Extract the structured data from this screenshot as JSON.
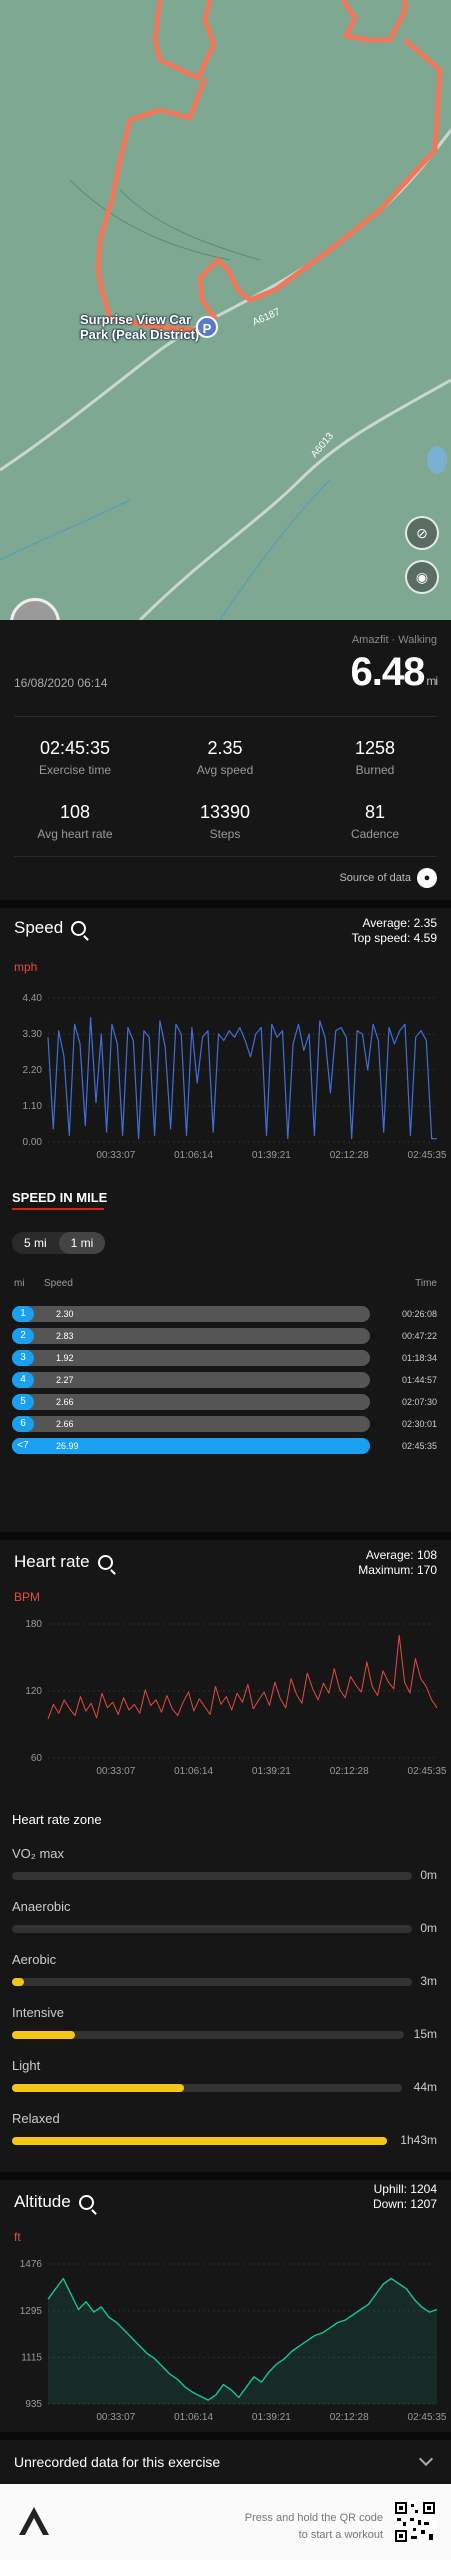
{
  "map": {
    "place_label": "Surprise View Car Park (Peak District)",
    "road_label_1": "A6187",
    "road_label_2": "A6013",
    "hide_map_icon": "map-off-icon",
    "visibility_icon": "eye-icon",
    "colors": {
      "route": "#f0785a",
      "land": "#7fa892"
    }
  },
  "summary": {
    "device": "Amazfit · Walking",
    "distance": "6.48",
    "distance_unit": "mi",
    "date": "16/08/2020 06:14",
    "stats": [
      {
        "value": "02:45:35",
        "label": "Exercise time"
      },
      {
        "value": "2.35",
        "label": "Avg speed"
      },
      {
        "value": "1258",
        "label": "Burned"
      },
      {
        "value": "108",
        "label": "Avg heart rate"
      },
      {
        "value": "13390",
        "label": "Steps"
      },
      {
        "value": "81",
        "label": "Cadence"
      }
    ],
    "source_label": "Source of data"
  },
  "speed": {
    "title": "Speed",
    "average": "Average: 2.35",
    "top": "Top speed: 4.59",
    "unit": "mph"
  },
  "speed_in_mile": {
    "title": "SPEED IN MILE",
    "seg_5": "5 mi",
    "seg_1": "1 mi",
    "col_mi": "mi",
    "col_speed": "Speed",
    "col_time": "Time",
    "rows": [
      {
        "mi": "1",
        "speed": "2.30",
        "time": "00:26:08",
        "frac": 0.44
      },
      {
        "mi": "2",
        "speed": "2.83",
        "time": "00:47:22",
        "frac": 0.44
      },
      {
        "mi": "3",
        "speed": "1.92",
        "time": "01:18:34",
        "frac": 0.44
      },
      {
        "mi": "4",
        "speed": "2.27",
        "time": "01:44:57",
        "frac": 0.44
      },
      {
        "mi": "5",
        "speed": "2.66",
        "time": "02:07:30",
        "frac": 0.44
      },
      {
        "mi": "6",
        "speed": "2.66",
        "time": "02:30:01",
        "frac": 0.44
      },
      {
        "mi": "<7",
        "speed": "26.99",
        "time": "02:45:35",
        "frac": 1.0
      }
    ],
    "colors": {
      "bar": "#1aa0f0"
    }
  },
  "heart": {
    "title": "Heart rate",
    "average": "Average: 108",
    "maximum": "Maximum: 170",
    "unit": "BPM",
    "zone_title": "Heart rate zone",
    "zones": [
      {
        "label": "VO₂ max",
        "value": "0m",
        "frac": 0
      },
      {
        "label": "Anaerobic",
        "value": "0m",
        "frac": 0
      },
      {
        "label": "Aerobic",
        "value": "3m",
        "frac": 0.03
      },
      {
        "label": "Intensive",
        "value": "15m",
        "frac": 0.16
      },
      {
        "label": "Light",
        "value": "44m",
        "frac": 0.44
      },
      {
        "label": "Relaxed",
        "value": "1h43m",
        "frac": 1.0
      }
    ],
    "colors": {
      "zone": "#f5c518"
    }
  },
  "altitude": {
    "title": "Altitude",
    "uphill": "Uphill: 1204",
    "down": "Down: 1207",
    "unit": "ft"
  },
  "unrecorded": {
    "label": "Unrecorded data for this exercise"
  },
  "footer": {
    "line1": "Press and hold the QR code",
    "line2": "to start a workout"
  },
  "chart_data": [
    {
      "type": "line",
      "title": "Speed",
      "ylabel": "mph",
      "x_ticks": [
        "00:33:07",
        "01:06:14",
        "01:39:21",
        "02:12:28",
        "02:45:35"
      ],
      "y_ticks": [
        "0.00",
        "1.10",
        "2.20",
        "3.30",
        "4.40"
      ],
      "ylim": [
        0,
        4.4
      ],
      "colors": {
        "line": "#3f6fd8"
      },
      "series": [
        {
          "values": [
            3.2,
            0.4,
            3.4,
            2.6,
            0.2,
            3.6,
            3.0,
            0.5,
            3.8,
            1.2,
            3.3,
            0.3,
            3.6,
            3.0,
            0.2,
            3.5,
            3.1,
            0.1,
            3.4,
            3.2,
            0.2,
            3.7,
            2.9,
            0.4,
            3.6,
            3.3,
            0.2,
            3.5,
            1.8,
            3.2,
            3.4,
            0.3,
            3.3,
            3.1,
            3.4,
            3.2,
            3.5,
            3.1,
            2.6,
            3.3,
            3.5,
            0.2,
            3.6,
            3.2,
            3.4,
            0.1,
            3.0,
            3.6,
            2.8,
            3.3,
            0.2,
            3.7,
            3.2,
            1.5,
            3.4,
            3.5,
            3.2,
            0.1,
            3.4,
            3.3,
            2.2,
            3.6,
            3.1,
            0.3,
            3.5,
            3.0,
            3.4,
            3.6,
            0.2,
            3.2,
            3.4,
            3.1,
            0.1,
            0.1
          ]
        }
      ]
    },
    {
      "type": "line",
      "title": "Heart rate",
      "ylabel": "BPM",
      "x_ticks": [
        "00:33:07",
        "01:06:14",
        "01:39:21",
        "02:12:28",
        "02:45:35"
      ],
      "y_ticks": [
        "60",
        "120",
        "180"
      ],
      "ylim": [
        60,
        180
      ],
      "colors": {
        "line": "#e84a3f"
      },
      "series": [
        {
          "values": [
            95,
            108,
            100,
            112,
            104,
            98,
            115,
            102,
            109,
            96,
            118,
            105,
            110,
            99,
            114,
            103,
            108,
            100,
            121,
            107,
            112,
            101,
            116,
            104,
            98,
            110,
            119,
            102,
            113,
            106,
            99,
            124,
            108,
            115,
            103,
            118,
            110,
            126,
            104,
            112,
            119,
            107,
            128,
            113,
            105,
            131,
            117,
            109,
            136,
            122,
            112,
            127,
            118,
            140,
            121,
            114,
            133,
            125,
            119,
            146,
            124,
            116,
            138,
            128,
            122,
            170,
            128,
            118,
            149,
            131,
            124,
            112,
            105
          ]
        }
      ]
    },
    {
      "type": "area",
      "title": "Altitude",
      "ylabel": "ft",
      "x_ticks": [
        "00:33:07",
        "01:06:14",
        "01:39:21",
        "02:12:28",
        "02:45:35"
      ],
      "y_ticks": [
        "935",
        "1115",
        "1295",
        "1476"
      ],
      "ylim": [
        935,
        1476
      ],
      "colors": {
        "line": "#19c39a"
      },
      "series": [
        {
          "values": [
            1340,
            1380,
            1420,
            1360,
            1300,
            1330,
            1290,
            1310,
            1270,
            1250,
            1220,
            1190,
            1160,
            1130,
            1110,
            1080,
            1050,
            1030,
            1000,
            980,
            965,
            950,
            970,
            1010,
            990,
            960,
            1000,
            1040,
            1020,
            1060,
            1090,
            1110,
            1140,
            1160,
            1180,
            1200,
            1210,
            1230,
            1250,
            1260,
            1280,
            1300,
            1320,
            1360,
            1400,
            1420,
            1400,
            1380,
            1340,
            1310,
            1290,
            1300
          ]
        }
      ]
    }
  ]
}
